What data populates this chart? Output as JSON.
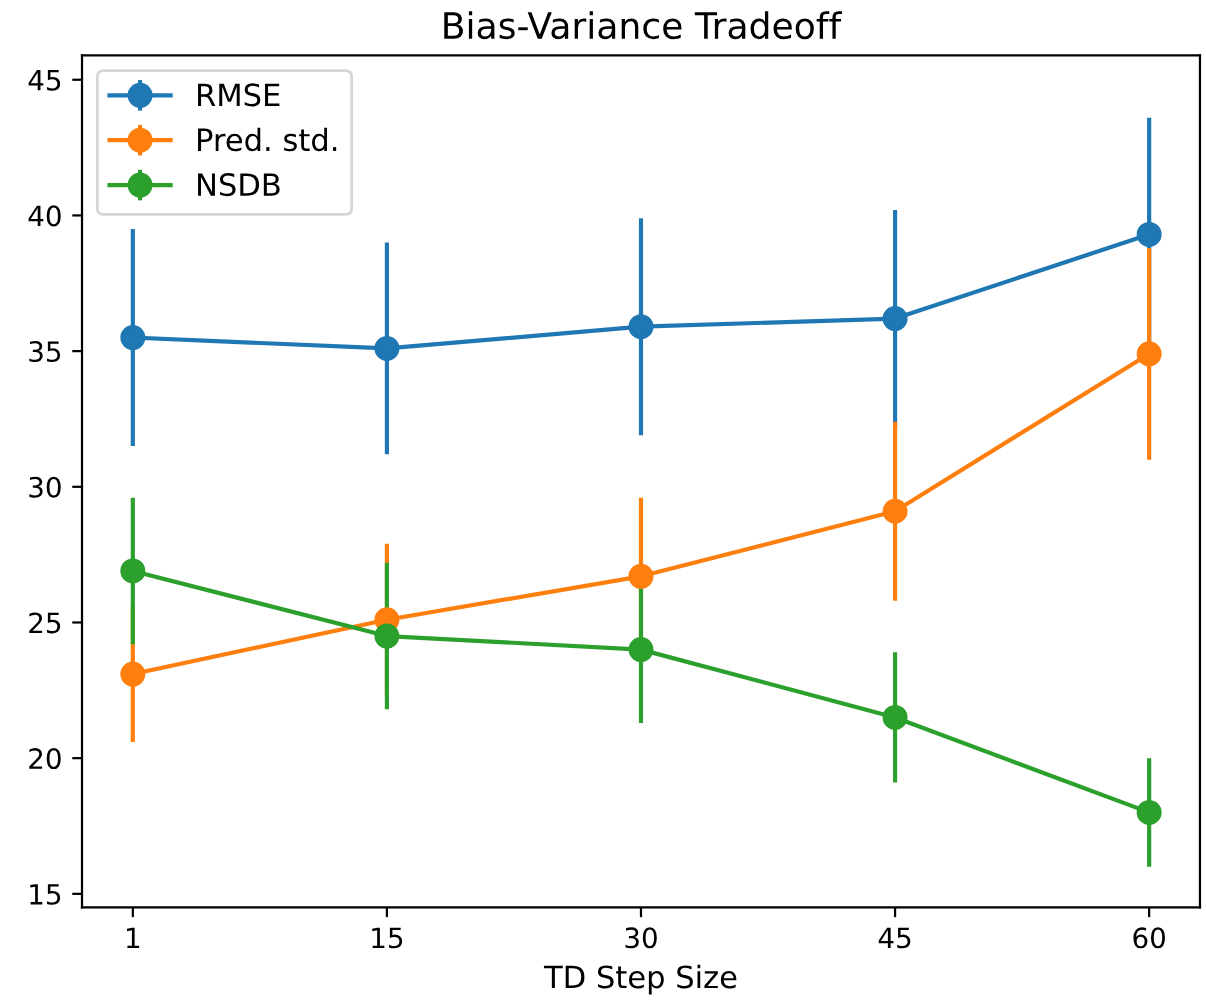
{
  "chart_data": {
    "type": "line",
    "title": "Bias-Variance Tradeoff",
    "xlabel": "TD Step Size",
    "categories": [
      "1",
      "15",
      "30",
      "45",
      "60"
    ],
    "ylim": [
      14.5,
      45.9
    ],
    "yticks": [
      15,
      20,
      25,
      30,
      35,
      40,
      45
    ],
    "marker": "circle",
    "legend": "top left",
    "grid": false,
    "series": [
      {
        "name": "RMSE",
        "color": "#1f77b4",
        "values": [
          35.5,
          35.1,
          35.9,
          36.2,
          39.3
        ],
        "errors": [
          4.0,
          3.9,
          4.0,
          4.0,
          4.3
        ]
      },
      {
        "name": "Pred. std.",
        "color": "#ff7f0e",
        "values": [
          23.1,
          25.1,
          26.7,
          29.1,
          34.9
        ],
        "errors": [
          2.5,
          2.8,
          2.9,
          3.3,
          3.9
        ]
      },
      {
        "name": "NSDB",
        "color": "#2ca02c",
        "values": [
          26.9,
          24.5,
          24.0,
          21.5,
          18.0
        ],
        "errors": [
          2.7,
          2.7,
          2.7,
          2.4,
          2.0
        ]
      }
    ]
  }
}
